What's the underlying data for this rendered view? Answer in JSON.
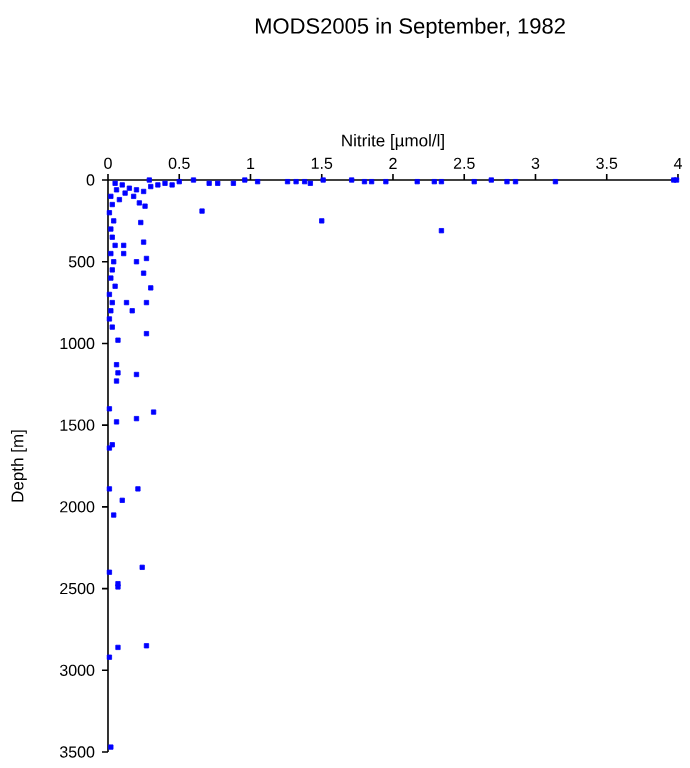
{
  "chart_data": {
    "type": "scatter",
    "title": "MODS2005 in September, 1982",
    "xlabel": "Nitrite [µmol/l]",
    "ylabel": "Depth [m]",
    "xlim": [
      0,
      4
    ],
    "xticks": [
      0,
      0.5,
      1,
      1.5,
      2,
      2.5,
      3,
      3.5,
      4
    ],
    "ylim": [
      3500,
      0
    ],
    "yticks": [
      0,
      500,
      1000,
      1500,
      2000,
      2500,
      3000,
      3500
    ],
    "grid": false,
    "marker": "square",
    "series": [
      {
        "color": "#0000ff",
        "x": [
          0.29,
          0.5,
          0.6,
          0.71,
          0.77,
          0.88,
          0.96,
          1.05,
          1.26,
          1.32,
          1.38,
          1.42,
          1.51,
          1.71,
          1.8,
          1.85,
          1.95,
          2.17,
          2.29,
          2.34,
          2.57,
          2.69,
          2.8,
          2.86,
          3.14,
          3.97,
          3.99,
          1.5,
          2.34,
          0.66,
          0.23,
          0.25,
          0.11,
          0.11,
          0.27,
          0.2,
          0.25,
          0.3,
          0.13,
          0.27,
          0.17,
          0.27,
          0.07,
          0.06,
          0.07,
          0.2,
          0.06,
          0.01,
          0.06,
          0.2,
          0.32,
          0.03,
          0.01,
          0.02,
          0.03,
          0.01,
          0.04,
          0.02,
          0.03,
          0.05,
          0.02,
          0.04,
          0.03,
          0.02,
          0.05,
          0.01,
          0.03,
          0.02,
          0.01,
          0.03,
          0.05,
          0.1,
          0.15,
          0.2,
          0.25,
          0.3,
          0.12,
          0.08,
          0.18,
          0.35,
          0.4,
          0.45,
          0.06,
          0.22,
          0.26,
          0.01,
          0.21,
          0.1,
          0.04,
          0.01,
          0.24,
          0.07,
          0.07,
          0.01,
          0.07,
          0.27,
          0.02
        ],
        "values": [
          0,
          10,
          0,
          20,
          20,
          20,
          0,
          10,
          10,
          10,
          10,
          20,
          0,
          0,
          10,
          10,
          10,
          10,
          10,
          10,
          10,
          0,
          10,
          10,
          10,
          0,
          0,
          250,
          310,
          190,
          260,
          380,
          400,
          450,
          480,
          500,
          570,
          660,
          750,
          750,
          800,
          940,
          980,
          1130,
          1180,
          1190,
          1230,
          1400,
          1480,
          1460,
          1420,
          1620,
          1640,
          100,
          150,
          200,
          250,
          300,
          350,
          400,
          450,
          500,
          550,
          600,
          650,
          700,
          750,
          800,
          850,
          900,
          20,
          30,
          50,
          60,
          70,
          40,
          80,
          120,
          100,
          30,
          20,
          30,
          60,
          140,
          160,
          1890,
          1890,
          1960,
          2050,
          2400,
          2370,
          2470,
          2490,
          2920,
          2860,
          2850,
          3470
        ]
      }
    ]
  }
}
